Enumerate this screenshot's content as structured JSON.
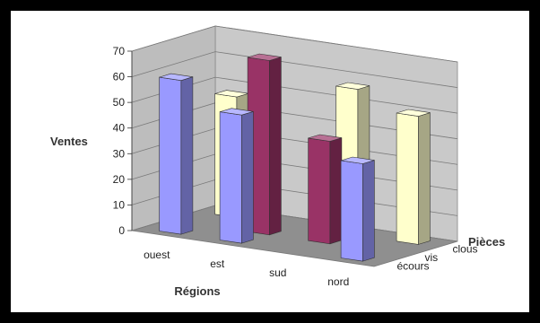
{
  "chart_data": {
    "type": "bar",
    "variant": "3d-column",
    "title": "",
    "ylabel": "Ventes",
    "xlabel": "Régions",
    "zlabel": "Pièces",
    "ylim": [
      0,
      70
    ],
    "yticks": [
      "0",
      "10",
      "20",
      "30",
      "40",
      "50",
      "60",
      "70"
    ],
    "categories": [
      "ouest",
      "est",
      "sud",
      "nord"
    ],
    "series": [
      {
        "name": "écours",
        "color": "#9999ff",
        "values": [
          60,
          50,
          0,
          38
        ]
      },
      {
        "name": "vis",
        "color": "#993366",
        "values": [
          0,
          68,
          40,
          0
        ]
      },
      {
        "name": "clous",
        "color": "#ffffcc",
        "values": [
          47,
          0,
          57,
          50
        ]
      }
    ],
    "grid": true,
    "legend": "none"
  }
}
